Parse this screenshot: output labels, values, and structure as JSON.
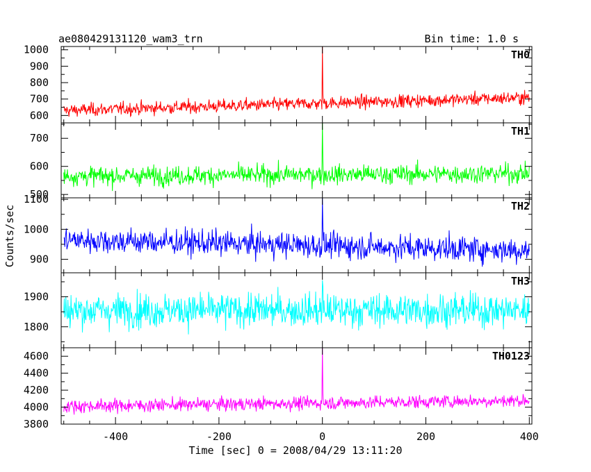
{
  "chart_data": {
    "type": "line",
    "title": "ae080429131120_wam3_trn",
    "subtitle": "Bin time: 1.0 s",
    "xlabel": "Time [sec] 0 = 2008/04/29 13:11:20",
    "ylabel": "Counts/sec",
    "xlim": [
      -505,
      405
    ],
    "xticks": [
      -400,
      -200,
      0,
      200,
      400
    ],
    "grid": false,
    "spike_x": 0,
    "panels": [
      {
        "name": "TH0",
        "color": "#ff0000",
        "ylim": [
          555,
          1020
        ],
        "yticks": [
          600,
          700,
          800,
          900,
          1000
        ],
        "start_mean": 630,
        "end_mean": 710,
        "noise_sd": 28,
        "spike_peak": 1020
      },
      {
        "name": "TH1",
        "color": "#00ff00",
        "ylim": [
          488,
          755
        ],
        "yticks": [
          500,
          600,
          700
        ],
        "start_mean": 565,
        "end_mean": 575,
        "noise_sd": 24,
        "spike_peak": 755
      },
      {
        "name": "TH2",
        "color": "#0000ff",
        "ylim": [
          855,
          1105
        ],
        "yticks": [
          900,
          1000,
          1100
        ],
        "start_mean": 965,
        "end_mean": 930,
        "noise_sd": 30,
        "spike_peak": 1105
      },
      {
        "name": "TH3",
        "color": "#00ffff",
        "ylim": [
          1730,
          1980
        ],
        "yticks": [
          1800,
          1900
        ],
        "start_mean": 1855,
        "end_mean": 1855,
        "noise_sd": 40,
        "spike_peak": 1955
      },
      {
        "name": "TH0123",
        "color": "#ff00ff",
        "ylim": [
          3800,
          4700
        ],
        "yticks": [
          3800,
          4000,
          4200,
          4400,
          4600
        ],
        "start_mean": 4010,
        "end_mean": 4080,
        "noise_sd": 55,
        "spike_peak": 4700
      }
    ]
  }
}
